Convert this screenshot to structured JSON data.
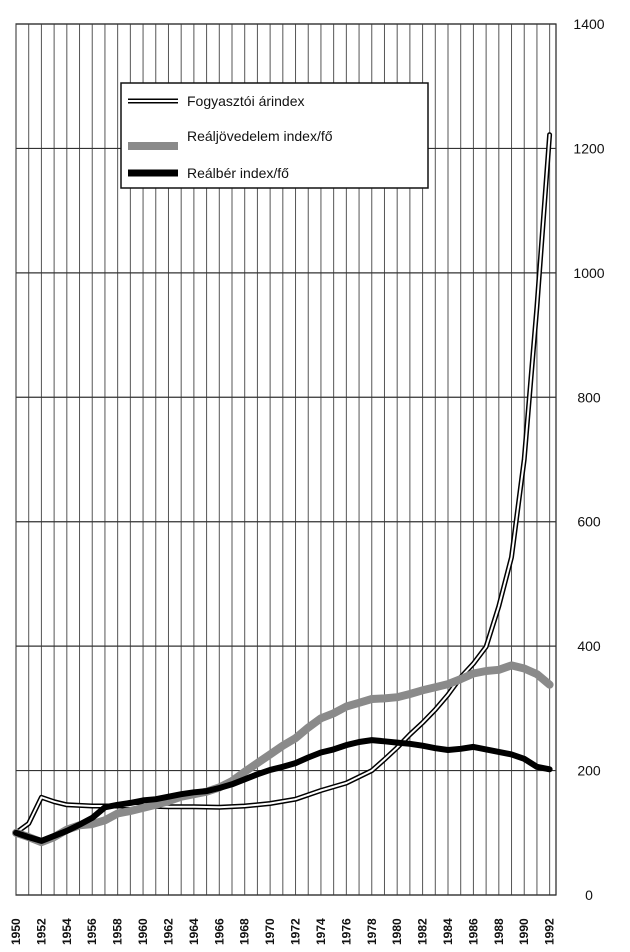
{
  "chart_data": {
    "type": "line",
    "title": "",
    "xlabel": "",
    "ylabel": "",
    "xlim": [
      1950,
      1992.5
    ],
    "ylim": [
      0,
      1400
    ],
    "grid": true,
    "legend_position": "top-left",
    "y_ticks": [
      0,
      200,
      400,
      600,
      800,
      1000,
      1200,
      1400
    ],
    "x_ticks": [
      1950,
      1952,
      1954,
      1956,
      1958,
      1960,
      1962,
      1964,
      1966,
      1968,
      1970,
      1972,
      1974,
      1976,
      1978,
      1980,
      1982,
      1984,
      1986,
      1988,
      1990,
      1992
    ],
    "series": [
      {
        "name": "Fogyasztói árindex",
        "style": "outline",
        "color": "#000000",
        "points": [
          [
            1950,
            100
          ],
          [
            1951,
            115
          ],
          [
            1952,
            157
          ],
          [
            1953,
            150
          ],
          [
            1954,
            145
          ],
          [
            1956,
            143
          ],
          [
            1958,
            143
          ],
          [
            1960,
            143
          ],
          [
            1962,
            142
          ],
          [
            1964,
            142
          ],
          [
            1966,
            141
          ],
          [
            1968,
            143
          ],
          [
            1970,
            147
          ],
          [
            1972,
            154
          ],
          [
            1974,
            168
          ],
          [
            1976,
            180
          ],
          [
            1978,
            200
          ],
          [
            1979,
            218
          ],
          [
            1980,
            237
          ],
          [
            1981,
            258
          ],
          [
            1982,
            277
          ],
          [
            1983,
            298
          ],
          [
            1984,
            322
          ],
          [
            1985,
            350
          ],
          [
            1986,
            372
          ],
          [
            1987,
            399
          ],
          [
            1988,
            464
          ],
          [
            1989,
            543
          ],
          [
            1990,
            700
          ],
          [
            1991,
            945
          ],
          [
            1992,
            1222
          ]
        ]
      },
      {
        "name": "Reáljövedelem index/fő",
        "style": "gray",
        "color": "#8a8a8a",
        "points": [
          [
            1950,
            100
          ],
          [
            1951,
            93
          ],
          [
            1952,
            85
          ],
          [
            1953,
            93
          ],
          [
            1954,
            105
          ],
          [
            1955,
            112
          ],
          [
            1956,
            114
          ],
          [
            1957,
            120
          ],
          [
            1958,
            131
          ],
          [
            1959,
            135
          ],
          [
            1960,
            140
          ],
          [
            1961,
            145
          ],
          [
            1962,
            151
          ],
          [
            1963,
            158
          ],
          [
            1964,
            162
          ],
          [
            1965,
            166
          ],
          [
            1966,
            173
          ],
          [
            1967,
            183
          ],
          [
            1968,
            198
          ],
          [
            1969,
            212
          ],
          [
            1970,
            226
          ],
          [
            1971,
            240
          ],
          [
            1972,
            252
          ],
          [
            1973,
            269
          ],
          [
            1974,
            284
          ],
          [
            1975,
            292
          ],
          [
            1976,
            303
          ],
          [
            1977,
            309
          ],
          [
            1978,
            315
          ],
          [
            1979,
            316
          ],
          [
            1980,
            318
          ],
          [
            1981,
            323
          ],
          [
            1982,
            329
          ],
          [
            1983,
            334
          ],
          [
            1984,
            339
          ],
          [
            1985,
            347
          ],
          [
            1986,
            356
          ],
          [
            1987,
            360
          ],
          [
            1988,
            362
          ],
          [
            1989,
            369
          ],
          [
            1990,
            364
          ],
          [
            1991,
            355
          ],
          [
            1992,
            338
          ]
        ]
      },
      {
        "name": "Reálbér index/fő",
        "style": "black",
        "color": "#000000",
        "points": [
          [
            1950,
            100
          ],
          [
            1951,
            93
          ],
          [
            1952,
            87
          ],
          [
            1953,
            95
          ],
          [
            1954,
            103
          ],
          [
            1955,
            113
          ],
          [
            1956,
            124
          ],
          [
            1957,
            141
          ],
          [
            1958,
            145
          ],
          [
            1959,
            148
          ],
          [
            1960,
            152
          ],
          [
            1961,
            154
          ],
          [
            1962,
            158
          ],
          [
            1963,
            162
          ],
          [
            1964,
            165
          ],
          [
            1965,
            167
          ],
          [
            1966,
            172
          ],
          [
            1967,
            178
          ],
          [
            1968,
            186
          ],
          [
            1969,
            194
          ],
          [
            1970,
            201
          ],
          [
            1971,
            206
          ],
          [
            1972,
            212
          ],
          [
            1973,
            221
          ],
          [
            1974,
            229
          ],
          [
            1975,
            234
          ],
          [
            1976,
            241
          ],
          [
            1977,
            246
          ],
          [
            1978,
            249
          ],
          [
            1979,
            247
          ],
          [
            1980,
            245
          ],
          [
            1981,
            243
          ],
          [
            1982,
            240
          ],
          [
            1983,
            236
          ],
          [
            1984,
            233
          ],
          [
            1985,
            235
          ],
          [
            1986,
            238
          ],
          [
            1987,
            234
          ],
          [
            1988,
            230
          ],
          [
            1989,
            226
          ],
          [
            1990,
            219
          ],
          [
            1991,
            206
          ],
          [
            1992,
            202
          ]
        ]
      }
    ]
  }
}
